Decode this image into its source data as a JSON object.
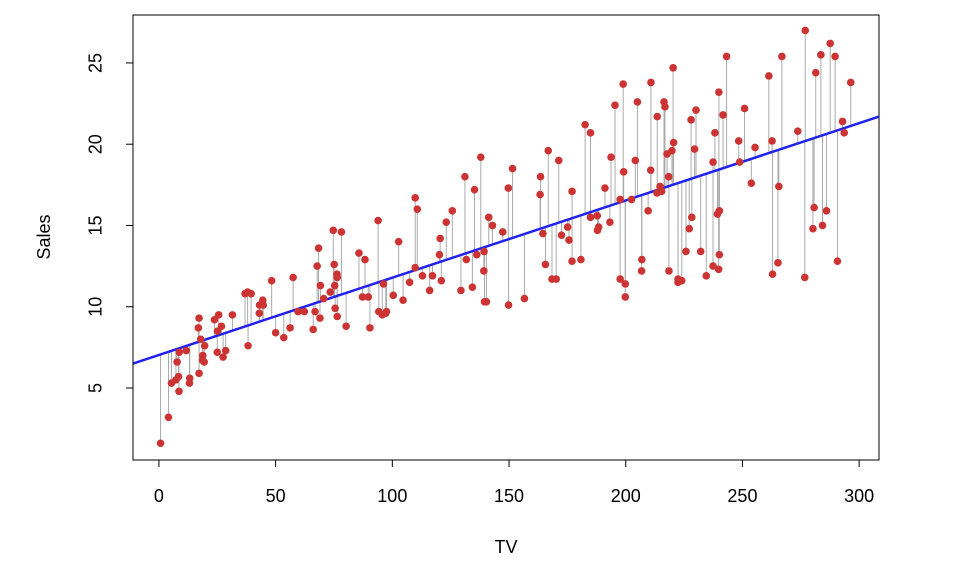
{
  "chart_data": {
    "type": "scatter",
    "x_label": "TV",
    "y_label": "Sales",
    "x": [
      230.1,
      44.5,
      17.2,
      151.5,
      180.8,
      8.7,
      57.5,
      120.2,
      8.6,
      199.8,
      66.1,
      214.7,
      23.8,
      97.5,
      204.1,
      195.4,
      67.8,
      281.4,
      69.2,
      147.3,
      218.4,
      237.4,
      13.2,
      228.3,
      62.3,
      262.9,
      142.9,
      240.1,
      248.8,
      70.6,
      292.9,
      112.9,
      97.2,
      265.6,
      95.7,
      290.7,
      266.9,
      74.7,
      43.1,
      228,
      202.5,
      177,
      293.6,
      206.9,
      25.1,
      175.1,
      89.7,
      239.9,
      227.2,
      66.9,
      199.8,
      100.4,
      216.4,
      182.6,
      262.7,
      198.9,
      7.3,
      136.2,
      210.8,
      210.7,
      53.5,
      261.3,
      239.3,
      102.7,
      131.1,
      69,
      31.5,
      139.3,
      237.4,
      216.8,
      199.1,
      109.8,
      26.8,
      129.4,
      213.4,
      16.9,
      27.5,
      120.5,
      5.4,
      116,
      76.4,
      239.8,
      75.3,
      68.4,
      213.5,
      193.2,
      76.3,
      110.7,
      88.3,
      109.8,
      134.3,
      28.6,
      217.7,
      250.9,
      107.4,
      163.3,
      197.6,
      184.9,
      289.7,
      135.2,
      222.4,
      296.4,
      280.2,
      187.9,
      238.2,
      137.9,
      25,
      90.4,
      13.1,
      255.4,
      225.8,
      241.7,
      175.7,
      209.6,
      78.2,
      75.1,
      139.2,
      76.4,
      125.7,
      19.4,
      141.3,
      18.8,
      224,
      123.1,
      229.5,
      87.2,
      7.8,
      80.2,
      220.3,
      59.6,
      0.7,
      265.2,
      8.4,
      219.8,
      36.9,
      48.3,
      25.6,
      273.7,
      43,
      184.9,
      73.4,
      193.7,
      220.5,
      104.6,
      96.2,
      140.3,
      240.1,
      243.2,
      38,
      44.7,
      280.7,
      121,
      197.6,
      171.3,
      187.8,
      4.1,
      93.9,
      149.8,
      11.7,
      131.7,
      172.5,
      85.7,
      188.4,
      163.5,
      117.2,
      234.5,
      17.9,
      206.8,
      215.4,
      284.3,
      50,
      164.5,
      19.6,
      168.4,
      222.4,
      276.9,
      248.4,
      170.2,
      276.7,
      165.6,
      156.6,
      218.5,
      56.2,
      287.6,
      253.8,
      205,
      139.5,
      191.1,
      286,
      18.7,
      39.5,
      75.5,
      17.2,
      166.8,
      149.7,
      38.2,
      94.2,
      177,
      283.6,
      232.1
    ],
    "series": [
      {
        "color": "#cc3333",
        "values": [
          22.1,
          10.4,
          9.3,
          18.5,
          12.9,
          7.2,
          11.8,
          13.2,
          4.8,
          10.6,
          8.6,
          17.4,
          9.2,
          9.7,
          19,
          22.4,
          12.5,
          24.4,
          11.3,
          14.6,
          18,
          12.5,
          5.6,
          15.5,
          9.7,
          12,
          15,
          15.9,
          18.9,
          10.5,
          21.4,
          11.9,
          9.6,
          17.4,
          9.5,
          12.8,
          25.4,
          14.7,
          10.1,
          21.5,
          16.6,
          17.1,
          20.7,
          12.9,
          8.5,
          14.9,
          10.6,
          23.2,
          14.8,
          9.7,
          11.4,
          10.7,
          22.6,
          21.2,
          20.2,
          23.7,
          5.5,
          13.2,
          23.8,
          18.4,
          8.1,
          24.2,
          15.7,
          14,
          18,
          9.3,
          9.5,
          13.4,
          18.9,
          22.3,
          18.3,
          12.4,
          8.8,
          11,
          17,
          8.7,
          6.9,
          14.2,
          5.3,
          11,
          11.8,
          12.3,
          11.3,
          13.6,
          21.7,
          15.2,
          12,
          16,
          12.9,
          16.7,
          11.2,
          7.3,
          19.4,
          22.2,
          11.5,
          16.9,
          11.7,
          15.5,
          25.4,
          17.2,
          11.7,
          23.8,
          14.8,
          14.7,
          20.7,
          19.2,
          7.2,
          8.7,
          5.3,
          19.8,
          13.4,
          21.8,
          14.1,
          15.9,
          14.6,
          12.6,
          12.2,
          9.4,
          15.9,
          6.6,
          15.5,
          7,
          11.6,
          15.2,
          19.7,
          10.6,
          6.6,
          8.8,
          24.7,
          9.7,
          1.6,
          12.7,
          5.7,
          19.6,
          10.8,
          11.6,
          9.5,
          20.8,
          9.6,
          20.7,
          10.9,
          19.2,
          20.1,
          10.4,
          11.4,
          10.3,
          13.2,
          25.4,
          10.9,
          10.1,
          16.1,
          11.6,
          16.6,
          19,
          15.6,
          3.2,
          15.3,
          10.1,
          7.3,
          12.9,
          14.4,
          13.3,
          14.9,
          18,
          11.9,
          11.9,
          8,
          12.2,
          17.1,
          15,
          8.4,
          14.5,
          7.6,
          11.7,
          11.5,
          27,
          20.2,
          11.7,
          11.8,
          12.6,
          10.5,
          12.2,
          8.7,
          26.2,
          17.6,
          22.6,
          10.3,
          17.3,
          15.9,
          6.7,
          10.8,
          9.9,
          5.9,
          19.6,
          17.3,
          7.6,
          9.7,
          12.8,
          25.5,
          13.4
        ]
      }
    ],
    "fit": {
      "intercept": 7.0326,
      "slope": 0.04754,
      "color": "#2222ee",
      "residual_color": "#aaaaaa"
    },
    "xlim": [
      -11.1,
      308.5
    ],
    "ylim": [
      0.57,
      27.95
    ],
    "xticks": [
      0,
      50,
      100,
      150,
      200,
      250,
      300
    ],
    "yticks": [
      5,
      10,
      15,
      20,
      25
    ]
  }
}
